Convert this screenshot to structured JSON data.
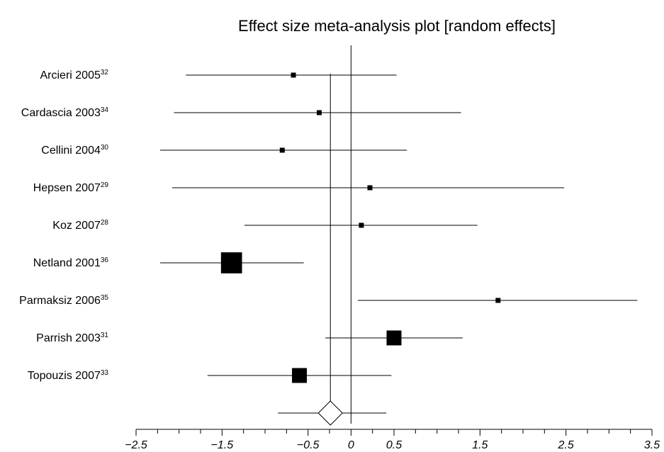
{
  "chart_data": {
    "type": "forest",
    "title": "Effect size meta-analysis plot [random effects]",
    "xlim": [
      -2.5,
      3.5
    ],
    "x_ticks_labeled": [
      {
        "value": -2.5,
        "label": "−2.5"
      },
      {
        "value": -1.5,
        "label": "−1.5"
      },
      {
        "value": -0.5,
        "label": "−0.5"
      },
      {
        "value": 0,
        "label": "0"
      },
      {
        "value": 0.5,
        "label": "0.5"
      },
      {
        "value": 1.5,
        "label": "1.5"
      },
      {
        "value": 2.5,
        "label": "2.5"
      },
      {
        "value": 3.5,
        "label": "3.5"
      }
    ],
    "x_minor_step": 0.25,
    "reference_line": 0,
    "pooled_line": -0.24,
    "studies": [
      {
        "name": "Arcieri 2005",
        "ref": "32",
        "estimate": -0.67,
        "lower": -1.92,
        "upper": 0.53,
        "weight": 1
      },
      {
        "name": "Cardascia 2003",
        "ref": "34",
        "estimate": -0.37,
        "lower": -2.06,
        "upper": 1.28,
        "weight": 1
      },
      {
        "name": "Cellini 2004",
        "ref": "30",
        "estimate": -0.8,
        "lower": -2.22,
        "upper": 0.65,
        "weight": 1
      },
      {
        "name": "Hepsen 2007",
        "ref": "29",
        "estimate": 0.22,
        "lower": -2.08,
        "upper": 2.48,
        "weight": 1
      },
      {
        "name": "Koz 2007",
        "ref": "28",
        "estimate": 0.12,
        "lower": -1.24,
        "upper": 1.47,
        "weight": 1
      },
      {
        "name": "Netland 2001",
        "ref": "36",
        "estimate": -1.39,
        "lower": -2.22,
        "upper": -0.55,
        "weight": 18
      },
      {
        "name": "Parmaksiz 2006",
        "ref": "35",
        "estimate": 1.71,
        "lower": 0.08,
        "upper": 3.33,
        "weight": 1
      },
      {
        "name": "Parrish 2003",
        "ref": "31",
        "estimate": 0.5,
        "lower": -0.3,
        "upper": 1.3,
        "weight": 9
      },
      {
        "name": "Topouzis 2007",
        "ref": "33",
        "estimate": -0.6,
        "lower": -1.67,
        "upper": 0.47,
        "weight": 9
      }
    ],
    "pooled": {
      "estimate": -0.24,
      "lower": -0.85,
      "upper": 0.41
    }
  }
}
